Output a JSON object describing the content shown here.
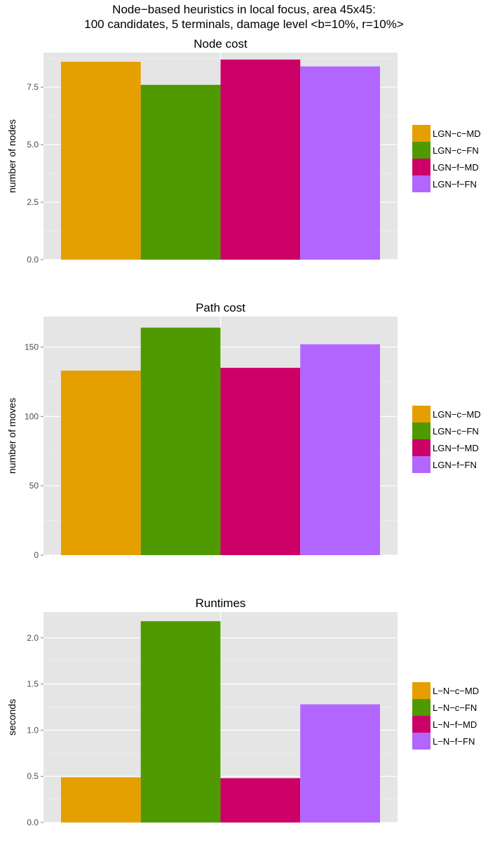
{
  "figure": {
    "title_line1": "Node−based heuristics in local focus, area 45x45:",
    "title_line2": "100 candidates, 5 terminals, damage level <b=10%, r=10%>"
  },
  "colors": {
    "panel_bg": "#e5e5e5",
    "grid": "#ffffff",
    "series": [
      "#e69f00",
      "#4f9a00",
      "#cc0066",
      "#b266ff"
    ]
  },
  "chart_data": [
    {
      "type": "bar",
      "title": "Node cost",
      "xlabel": "",
      "ylabel": "number of nodes",
      "ylim": [
        0,
        9.0
      ],
      "yticks": [
        0.0,
        2.5,
        5.0,
        7.5
      ],
      "ytick_labels": [
        "0.0",
        "2.5",
        "5.0",
        "7.5"
      ],
      "grid": true,
      "legend_position": "right",
      "series": [
        {
          "name": "LGN−c−MD",
          "values": [
            8.6
          ]
        },
        {
          "name": "LGN−c−FN",
          "values": [
            7.6
          ]
        },
        {
          "name": "LGN−f−MD",
          "values": [
            8.7
          ]
        },
        {
          "name": "LGN−f−FN",
          "values": [
            8.4
          ]
        }
      ]
    },
    {
      "type": "bar",
      "title": "Path cost",
      "xlabel": "",
      "ylabel": "number of moves",
      "ylim": [
        0,
        172
      ],
      "yticks": [
        0,
        50,
        100,
        150
      ],
      "ytick_labels": [
        "0",
        "50",
        "100",
        "150"
      ],
      "grid": true,
      "legend_position": "right",
      "series": [
        {
          "name": "LGN−c−MD",
          "values": [
            133
          ]
        },
        {
          "name": "LGN−c−FN",
          "values": [
            164
          ]
        },
        {
          "name": "LGN−f−MD",
          "values": [
            135
          ]
        },
        {
          "name": "LGN−f−FN",
          "values": [
            152
          ]
        }
      ]
    },
    {
      "type": "bar",
      "title": "Runtimes",
      "xlabel": "",
      "ylabel": "seconds",
      "ylim": [
        0,
        2.28
      ],
      "yticks": [
        0.0,
        0.5,
        1.0,
        1.5,
        2.0
      ],
      "ytick_labels": [
        "0.0",
        "0.5",
        "1.0",
        "1.5",
        "2.0"
      ],
      "grid": true,
      "legend_position": "right",
      "series": [
        {
          "name": "L−N−c−MD",
          "values": [
            0.49
          ]
        },
        {
          "name": "L−N−c−FN",
          "values": [
            2.18
          ]
        },
        {
          "name": "L−N−f−MD",
          "values": [
            0.48
          ]
        },
        {
          "name": "L−N−f−FN",
          "values": [
            1.28
          ]
        }
      ]
    }
  ]
}
